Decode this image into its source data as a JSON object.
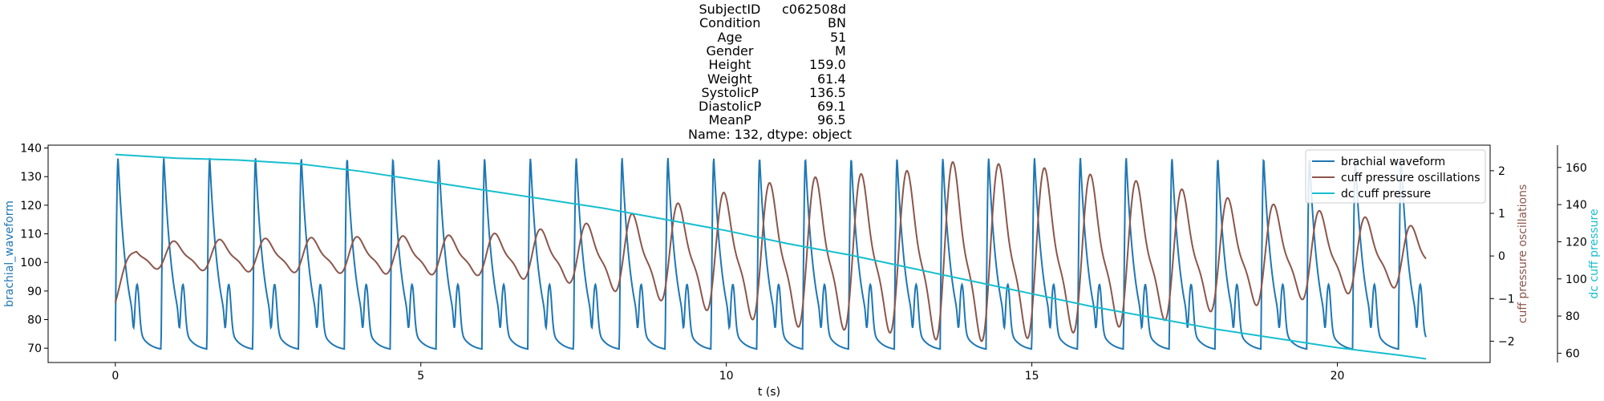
{
  "title_rows": [
    {
      "key": "SubjectID",
      "value": "c062508d"
    },
    {
      "key": "Condition",
      "value": "BN"
    },
    {
      "key": "Age",
      "value": "51"
    },
    {
      "key": "Gender",
      "value": "M"
    },
    {
      "key": "Height",
      "value": "159.0"
    },
    {
      "key": "Weight",
      "value": "61.4"
    },
    {
      "key": "SystolicP",
      "value": "136.5"
    },
    {
      "key": "DiastolicP",
      "value": "69.1"
    },
    {
      "key": "MeanP",
      "value": "96.5"
    }
  ],
  "title_footer": "Name: 132, dtype: object",
  "chart_data": {
    "type": "line",
    "xlabel": "t (s)",
    "xlim": [
      -1.1,
      22.5
    ],
    "x_ticks": [
      0,
      5,
      10,
      15,
      20
    ],
    "grid": false,
    "legend": "top-right",
    "axes": [
      {
        "name": "brachial_waveform",
        "side": "left",
        "label": "brachial_waveform",
        "color": "#1f77b4",
        "ylim": [
          65,
          141
        ],
        "ticks": [
          70,
          80,
          90,
          100,
          110,
          120,
          130,
          140
        ]
      },
      {
        "name": "cuff_pressure_oscillations",
        "side": "right",
        "label": "cuff pressure oscillations",
        "color": "#8c564b",
        "ylim": [
          -2.5,
          2.6
        ],
        "ticks": [
          -2,
          -1,
          0,
          1,
          2
        ]
      },
      {
        "name": "dc_cuff_pressure",
        "side": "right-outer",
        "label": "dc cuff pressure",
        "color": "#17becf",
        "ylim": [
          55,
          172
        ],
        "ticks": [
          60,
          80,
          100,
          120,
          140,
          160
        ]
      }
    ],
    "series": [
      {
        "name": "brachial waveform",
        "axis": 0,
        "color": "#1f77b4",
        "pulse": {
          "t_start": 0.0,
          "t_end": 21.45,
          "beat_times": [
            0,
            0.75,
            1.5,
            2.25,
            3.0,
            3.75,
            4.5,
            5.25,
            6.0,
            6.75,
            7.5,
            8.25,
            9.0,
            9.75,
            10.5,
            11.25,
            12.0,
            12.75,
            13.5,
            14.25,
            15.0,
            15.75,
            16.5,
            17.25,
            18.0,
            18.75,
            19.5,
            20.25,
            21.0
          ],
          "systolic": 136.5,
          "diastolic": 69.1,
          "dicrotic_level": 93
        }
      },
      {
        "name": "cuff pressure oscillations",
        "axis": 1,
        "color": "#8c564b",
        "envelope": {
          "t": [
            0,
            2,
            4,
            6,
            7.5,
            8.5,
            10,
            11,
            12,
            13,
            13.6,
            14,
            15,
            16,
            17,
            18,
            19,
            20,
            21,
            21.45
          ],
          "amplitude": [
            0.3,
            0.4,
            0.45,
            0.5,
            0.7,
            1.0,
            1.5,
            1.8,
            1.9,
            2.0,
            2.2,
            2.2,
            2.1,
            1.9,
            1.7,
            1.4,
            1.2,
            1.0,
            0.8,
            0.6
          ]
        }
      },
      {
        "name": "dc cuff pressure",
        "axis": 2,
        "color": "#17becf",
        "x": [
          0,
          1,
          2,
          3,
          4,
          5,
          6,
          7,
          8,
          9,
          10,
          11,
          12,
          13,
          14,
          15,
          16,
          17,
          18,
          19,
          20,
          21,
          21.45
        ],
        "y": [
          167,
          165,
          164,
          162,
          158,
          153,
          148,
          143,
          138,
          132,
          126,
          119,
          113,
          106,
          99,
          92,
          85,
          79,
          73,
          68,
          63,
          59,
          57
        ]
      }
    ]
  }
}
